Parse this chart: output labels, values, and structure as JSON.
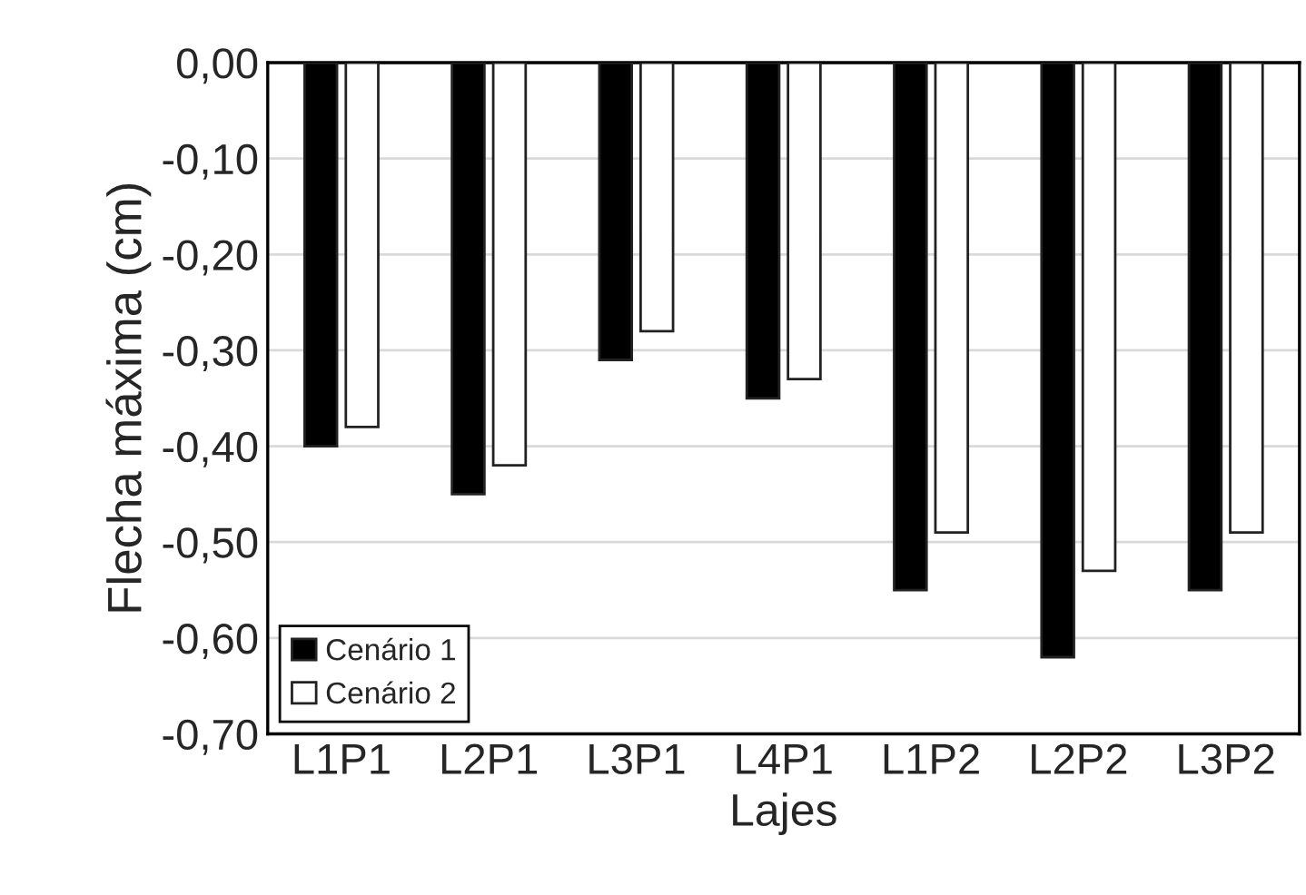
{
  "chart_data": {
    "type": "bar",
    "xlabel": "Lajes",
    "ylabel": "Flecha máxima (cm)",
    "categories": [
      "L1P1",
      "L2P1",
      "L3P1",
      "L4P1",
      "L1P2",
      "L2P2",
      "L3P2"
    ],
    "series": [
      {
        "name": "Cenário 1",
        "color": "#000000",
        "values": [
          -0.4,
          -0.45,
          -0.31,
          -0.35,
          -0.55,
          -0.62,
          -0.55
        ]
      },
      {
        "name": "Cenário 2",
        "color": "#ffffff",
        "values": [
          -0.38,
          -0.42,
          -0.28,
          -0.33,
          -0.49,
          -0.53,
          -0.49
        ]
      }
    ],
    "ylim": [
      -0.7,
      0
    ],
    "yticks": [
      {
        "value": 0,
        "label": "0,00"
      },
      {
        "value": -0.1,
        "label": "-0,10"
      },
      {
        "value": -0.2,
        "label": "-0,20"
      },
      {
        "value": -0.3,
        "label": "-0,30"
      },
      {
        "value": -0.4,
        "label": "-0,40"
      },
      {
        "value": -0.5,
        "label": "-0,50"
      },
      {
        "value": -0.6,
        "label": "-0,60"
      },
      {
        "value": -0.7,
        "label": "-0,70"
      }
    ],
    "grid": "y",
    "legend": "bottom left"
  }
}
